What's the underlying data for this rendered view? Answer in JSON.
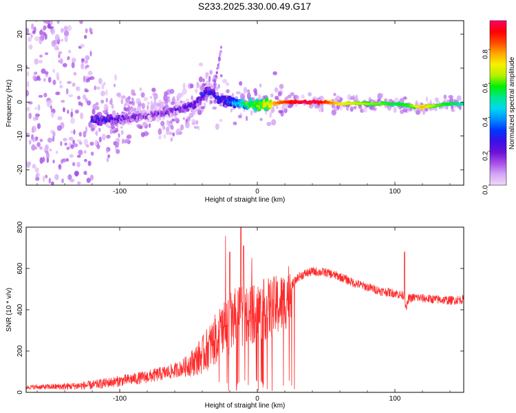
{
  "chart_data": [
    {
      "type": "heatmap",
      "title": "S233.2025.330.00.49.G17",
      "xlabel": "Height of straight line (km)",
      "ylabel": "Frequency (Hz)",
      "xlim": [
        -168,
        150
      ],
      "ylim": [
        -24.5,
        24
      ],
      "xticks": [
        -100,
        0,
        100
      ],
      "yticks": [
        -20,
        -10,
        0,
        10,
        20
      ],
      "colorbar": {
        "label": "Normalized spectral amplitude",
        "range": [
          0.0,
          0.97
        ],
        "ticks": [
          0.0,
          0.2,
          0.4,
          0.6,
          0.8
        ],
        "colors": [
          "#f0d8fa",
          "#d4a6f5",
          "#a84fe6",
          "#6a12d8",
          "#3a10e6",
          "#0034ff",
          "#0090ff",
          "#00d8f0",
          "#00e890",
          "#00f000",
          "#b8f000",
          "#f8f000",
          "#ffa800",
          "#ff4800",
          "#ff0000",
          "#ff0068"
        ]
      },
      "ridge": {
        "x": [
          -120,
          -100,
          -80,
          -60,
          -45,
          -38,
          -33,
          -28,
          -20,
          -10,
          0,
          10,
          20,
          30,
          40,
          50,
          60,
          70,
          80,
          90,
          100,
          110,
          120,
          130,
          140,
          150
        ],
        "frequency": [
          -5.5,
          -5.0,
          -4.0,
          -2.5,
          -0.5,
          2.5,
          3.0,
          1.0,
          0.0,
          -0.5,
          -1.0,
          -0.5,
          0.0,
          0.0,
          0.0,
          0.0,
          -0.5,
          -0.3,
          -0.5,
          -0.5,
          -0.5,
          -1.0,
          -1.5,
          -1.0,
          -0.5,
          -0.5
        ],
        "amplitude": [
          0.28,
          0.22,
          0.15,
          0.18,
          0.25,
          0.28,
          0.25,
          0.3,
          0.35,
          0.55,
          0.65,
          0.75,
          0.85,
          0.93,
          0.95,
          0.85,
          0.7,
          0.65,
          0.62,
          0.6,
          0.55,
          0.58,
          0.75,
          0.6,
          0.55,
          0.5
        ]
      }
    },
    {
      "type": "line",
      "xlabel": "Height of straight line (km)",
      "ylabel": "SNR (10 * v/v)",
      "xlim": [
        -168,
        150
      ],
      "ylim": [
        0,
        800
      ],
      "xticks": [
        -100,
        0,
        100
      ],
      "yticks": [
        0,
        200,
        400,
        600,
        800
      ],
      "line_color": "#ff2a2a",
      "series": [
        {
          "name": "SNR",
          "x": [
            -168,
            -140,
            -120,
            -105,
            -90,
            -80,
            -70,
            -60,
            -52,
            -45,
            -40,
            -35,
            -30,
            -25,
            -20,
            -18,
            -15,
            -10,
            -5,
            0,
            5,
            10,
            15,
            20,
            25,
            30,
            35,
            40,
            50,
            60,
            70,
            80,
            90,
            100,
            105,
            107,
            108,
            110,
            115,
            120,
            130,
            140,
            150
          ],
          "y": [
            25,
            28,
            35,
            50,
            65,
            75,
            90,
            105,
            125,
            155,
            180,
            220,
            260,
            300,
            330,
            350,
            360,
            370,
            380,
            390,
            400,
            410,
            420,
            440,
            520,
            560,
            575,
            585,
            580,
            560,
            530,
            510,
            490,
            480,
            470,
            470,
            400,
            455,
            460,
            455,
            450,
            445,
            450
          ]
        }
      ],
      "annotations": [
        {
          "x": -12,
          "y": 800
        },
        {
          "x": -20,
          "y": 680
        },
        {
          "x": -10,
          "y": 710
        },
        {
          "x": 107,
          "y": 680
        }
      ]
    }
  ]
}
